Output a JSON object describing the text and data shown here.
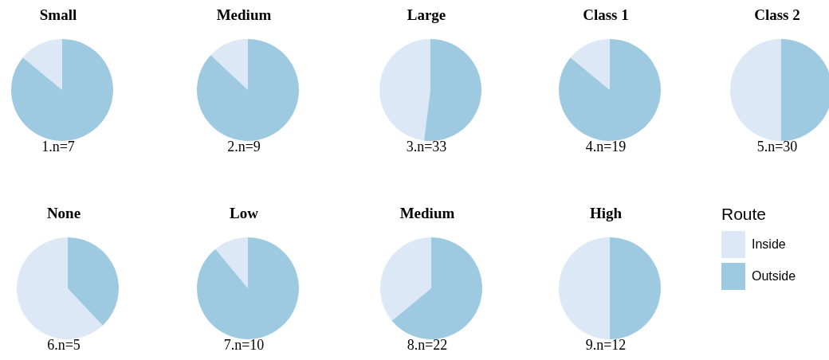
{
  "chart_data": [
    {
      "type": "pie",
      "title": "Small",
      "categories": [
        null,
        null
      ],
      "values": [
        14,
        86
      ],
      "colors": [
        "#dce8f5",
        "#9ecae1"
      ],
      "annotations": [
        "1.n=7"
      ]
    },
    {
      "type": "pie",
      "title": "Medium",
      "categories": [
        null,
        null
      ],
      "values": [
        13,
        87
      ],
      "colors": [
        "#dce8f5",
        "#9ecae1"
      ],
      "annotations": [
        "2.n=9"
      ]
    },
    {
      "type": "pie",
      "title": "Large",
      "categories": [
        null,
        null
      ],
      "values": [
        48,
        52
      ],
      "colors": [
        "#dce8f5",
        "#9ecae1"
      ],
      "annotations": [
        "3.n=33"
      ]
    },
    {
      "type": "pie",
      "title": "Class 1",
      "categories": [
        null,
        null
      ],
      "values": [
        14,
        86
      ],
      "colors": [
        "#dce8f5",
        "#9ecae1"
      ],
      "annotations": [
        "4.n=19"
      ]
    },
    {
      "type": "pie",
      "title": "Class 2",
      "categories": [
        null,
        null
      ],
      "values": [
        50,
        50
      ],
      "colors": [
        "#dce8f5",
        "#9ecae1"
      ],
      "annotations": [
        "5.n=30"
      ]
    },
    {
      "type": "pie",
      "title": "None",
      "categories": [
        null,
        null
      ],
      "values": [
        62,
        38
      ],
      "colors": [
        "#dce8f5",
        "#9ecae1"
      ],
      "annotations": [
        "6.n=5"
      ]
    },
    {
      "type": "pie",
      "title": "Low",
      "categories": [
        null,
        null
      ],
      "values": [
        11,
        89
      ],
      "colors": [
        "#dce8f5",
        "#9ecae1"
      ],
      "annotations": [
        "7.n=10"
      ]
    },
    {
      "type": "pie",
      "title": "Medium",
      "categories": [
        null,
        null
      ],
      "values": [
        36,
        64
      ],
      "colors": [
        "#dce8f5",
        "#9ecae1"
      ],
      "annotations": [
        "8.n=22"
      ]
    },
    {
      "type": "pie",
      "title": "High",
      "categories": [
        "Inside",
        "Outside"
      ],
      "values": [
        50,
        50
      ],
      "colors": [
        "#dce8f5",
        "#9ecae1"
      ],
      "annotations": [
        "9.n=12"
      ],
      "legend": "right",
      "legend_title": "Route"
    }
  ]
}
